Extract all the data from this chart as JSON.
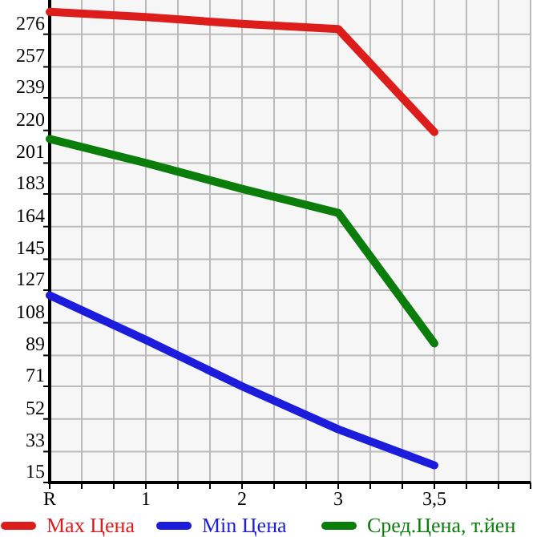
{
  "chart_data": {
    "type": "line",
    "categories": [
      "R",
      "1",
      "2",
      "3",
      "3,5"
    ],
    "series": [
      {
        "name": "Max Цена",
        "color": "#dd1c1c",
        "values": [
          289,
          286,
          282,
          279,
          219
        ]
      },
      {
        "name": "Min Цена",
        "color": "#1c1cdd",
        "values": [
          124,
          98,
          71,
          46,
          25
        ]
      },
      {
        "name": "Сред.Цена, т.йен",
        "color": "#0a7d0a",
        "values": [
          215,
          201,
          186,
          172,
          96
        ]
      }
    ],
    "ylim": [
      15,
      295
    ],
    "yticks": [
      15,
      33,
      52,
      71,
      89,
      108,
      127,
      145,
      164,
      183,
      201,
      220,
      239,
      257,
      276
    ],
    "grid": true,
    "legend": "bottom",
    "line_style": "solid"
  }
}
